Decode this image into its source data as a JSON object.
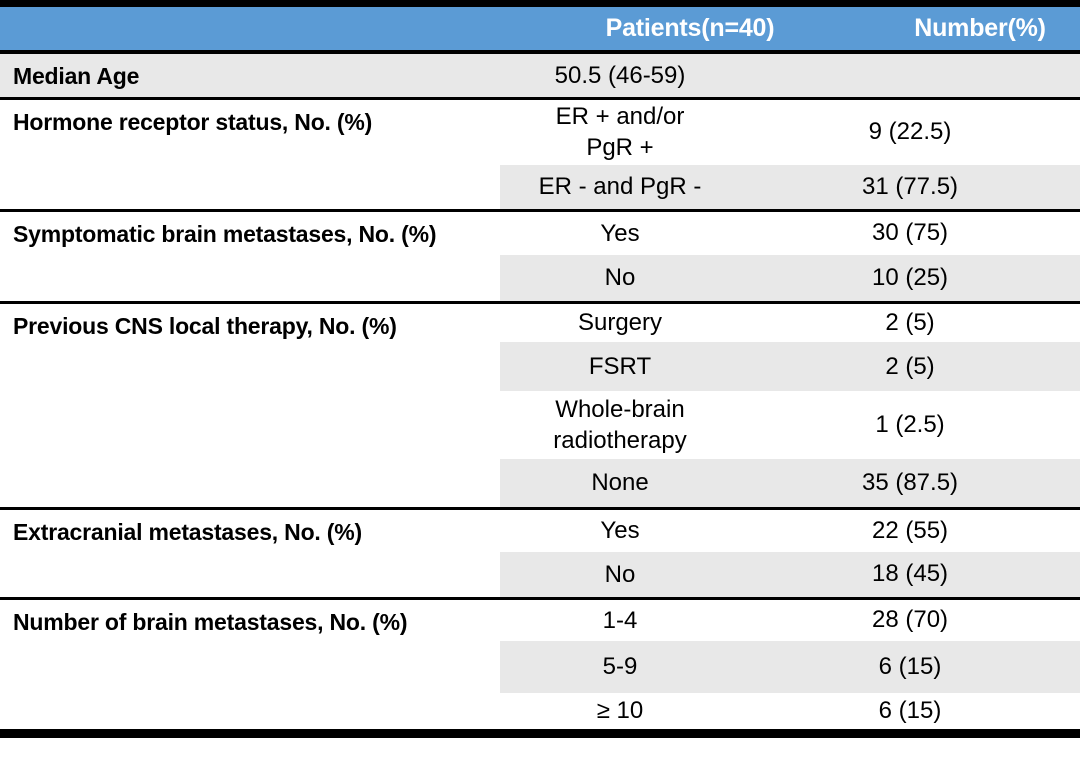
{
  "colors": {
    "header_bg": "#5b9bd5",
    "header_text": "#ffffff",
    "band_bg": "#e8e8e8",
    "rule": "#000000",
    "text": "#000000"
  },
  "table": {
    "header": {
      "col_label": "",
      "col_patients": "Patients(n=40)",
      "col_number": "Number(%)"
    },
    "sections": [
      {
        "label": "Median Age",
        "rows": [
          {
            "value": "50.5 (46-59)",
            "number": ""
          }
        ]
      },
      {
        "label": "Hormone receptor status, No. (%)",
        "rows": [
          {
            "value": "ER + and/or\nPgR +",
            "number": "9 (22.5)"
          },
          {
            "value": "ER - and PgR -",
            "number": "31 (77.5)"
          }
        ]
      },
      {
        "label": "Symptomatic brain metastases, No. (%)",
        "rows": [
          {
            "value": "Yes",
            "number": "30 (75)"
          },
          {
            "value": "No",
            "number": "10 (25)"
          }
        ]
      },
      {
        "label": "Previous CNS local therapy, No. (%)",
        "rows": [
          {
            "value": "Surgery",
            "number": "2 (5)"
          },
          {
            "value": "FSRT",
            "number": "2 (5)"
          },
          {
            "value": "Whole-brain\nradiotherapy",
            "number": "1 (2.5)"
          },
          {
            "value": "None",
            "number": "35 (87.5)"
          }
        ]
      },
      {
        "label": "Extracranial metastases, No. (%)",
        "rows": [
          {
            "value": "Yes",
            "number": "22 (55)"
          },
          {
            "value": "No",
            "number": "18 (45)"
          }
        ]
      },
      {
        "label": "Number of brain metastases, No. (%)",
        "rows": [
          {
            "value": "1-4",
            "number": "28 (70)"
          },
          {
            "value": "5-9",
            "number": "6 (15)"
          },
          {
            "value": "≥ 10",
            "number": "6 (15)"
          }
        ]
      }
    ]
  }
}
